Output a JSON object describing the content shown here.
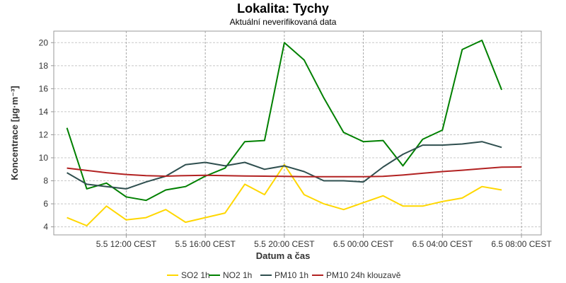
{
  "chart_data": {
    "type": "line",
    "title": "Lokalita: Tychy",
    "subtitle": "Aktuální neverifikovaná data",
    "xlabel": "Datum a čas",
    "ylabel": "Koncentrace [µg·m⁻³]",
    "ylim": [
      3.3,
      21
    ],
    "yticks": [
      4,
      6,
      8,
      10,
      12,
      14,
      16,
      18,
      20
    ],
    "x_range": [
      "5.5 08:20",
      "6.5 09:00"
    ],
    "xticks": [
      {
        "x": "5.5 12:00",
        "label": "5.5 12:00 CEST"
      },
      {
        "x": "5.5 16:00",
        "label": "5.5 16:00 CEST"
      },
      {
        "x": "5.5 20:00",
        "label": "5.5 20:00 CEST"
      },
      {
        "x": "6.5 00:00",
        "label": "6.5 00:00 CEST"
      },
      {
        "x": "6.5 04:00",
        "label": "6.5 04:00 CEST"
      },
      {
        "x": "6.5 08:00",
        "label": "6.5 08:00 CEST"
      }
    ],
    "grid": true,
    "legend_position": "bottom",
    "x": [
      "5.5 09:00",
      "5.5 10:00",
      "5.5 11:00",
      "5.5 12:00",
      "5.5 13:00",
      "5.5 14:00",
      "5.5 15:00",
      "5.5 16:00",
      "5.5 17:00",
      "5.5 18:00",
      "5.5 19:00",
      "5.5 20:00",
      "5.5 21:00",
      "5.5 22:00",
      "5.5 23:00",
      "6.5 00:00",
      "6.5 01:00",
      "6.5 02:00",
      "6.5 03:00",
      "6.5 04:00",
      "6.5 05:00",
      "6.5 06:00",
      "6.5 07:00",
      "6.5 08:00"
    ],
    "series": [
      {
        "name": "SO2 1h",
        "color": "#ffd700",
        "values": [
          4.8,
          4.1,
          5.8,
          4.6,
          4.8,
          5.5,
          4.4,
          4.8,
          5.2,
          7.7,
          6.8,
          9.4,
          6.8,
          6.0,
          5.5,
          6.1,
          6.7,
          5.8,
          5.8,
          6.2,
          6.5,
          7.5,
          7.2,
          null
        ]
      },
      {
        "name": "NO2 1h",
        "color": "#008000",
        "values": [
          12.6,
          7.3,
          7.8,
          6.6,
          6.3,
          7.2,
          7.5,
          8.4,
          9.1,
          11.4,
          11.5,
          20.0,
          18.5,
          15.2,
          12.2,
          11.4,
          11.5,
          9.3,
          11.6,
          12.4,
          19.4,
          20.2,
          15.9,
          null
        ]
      },
      {
        "name": "PM10 1h",
        "color": "#2f4f4f",
        "values": [
          8.7,
          7.7,
          7.5,
          7.3,
          7.9,
          8.4,
          9.4,
          9.6,
          9.3,
          9.6,
          9.0,
          9.3,
          8.8,
          8.0,
          8.0,
          7.9,
          9.2,
          10.3,
          11.1,
          11.1,
          11.2,
          11.4,
          10.9,
          null
        ]
      },
      {
        "name": "PM10 24h klouzavě",
        "color": "#b22222",
        "values": [
          9.1,
          8.9,
          8.7,
          8.55,
          8.45,
          8.4,
          8.45,
          8.48,
          8.45,
          8.42,
          8.4,
          8.38,
          8.35,
          8.35,
          8.35,
          8.35,
          8.38,
          8.5,
          8.65,
          8.8,
          8.92,
          9.05,
          9.18,
          9.2
        ]
      }
    ]
  }
}
